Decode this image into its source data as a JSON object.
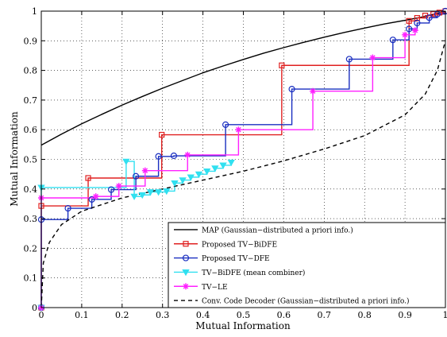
{
  "chart_data": {
    "type": "line",
    "title": "",
    "xlabel": "Mutual Information",
    "ylabel": "Mutual Information",
    "xlim": [
      0,
      1
    ],
    "ylim": [
      0,
      1
    ],
    "xticks": [
      "0",
      "0.1",
      "0.2",
      "0.3",
      "0.4",
      "0.5",
      "0.6",
      "0.7",
      "0.8",
      "0.9",
      "1"
    ],
    "yticks": [
      "0",
      "0.1",
      "0.2",
      "0.3",
      "0.4",
      "0.5",
      "0.6",
      "0.7",
      "0.8",
      "0.9",
      "1"
    ],
    "grid": true,
    "legend_position": "bottom-right",
    "series": [
      {
        "name": "MAP (Gaussian−distributed a priori info.)",
        "color": "#000000",
        "dash": "solid",
        "marker": "none",
        "step": false,
        "x": [
          0,
          0.05,
          0.1,
          0.15,
          0.2,
          0.25,
          0.3,
          0.35,
          0.4,
          0.45,
          0.5,
          0.55,
          0.6,
          0.65,
          0.7,
          0.75,
          0.8,
          0.85,
          0.9,
          0.95,
          1.0
        ],
        "y": [
          0.548,
          0.585,
          0.62,
          0.652,
          0.683,
          0.712,
          0.74,
          0.766,
          0.792,
          0.815,
          0.837,
          0.858,
          0.877,
          0.895,
          0.912,
          0.928,
          0.943,
          0.957,
          0.969,
          0.982,
          1.0
        ]
      },
      {
        "name": "Proposed TV−BiDFE",
        "color": "#e02020",
        "dash": "solid",
        "marker": "square",
        "step": true,
        "x": [
          0.0,
          0.0,
          0.116,
          0.298,
          0.595,
          0.91,
          0.93,
          0.95,
          0.97,
          0.985,
          1.0
        ],
        "y": [
          0.0,
          0.343,
          0.437,
          0.583,
          0.817,
          0.967,
          0.977,
          0.985,
          0.99,
          0.995,
          1.0
        ]
      },
      {
        "name": "Proposed TV−DFE",
        "color": "#1a2fc0",
        "dash": "solid",
        "marker": "circle",
        "step": true,
        "x": [
          0.0,
          0.0,
          0.066,
          0.125,
          0.173,
          0.234,
          0.29,
          0.328,
          0.456,
          0.62,
          0.762,
          0.87,
          0.91,
          0.93,
          0.96,
          0.98,
          1.0
        ],
        "y": [
          0.0,
          0.297,
          0.335,
          0.365,
          0.398,
          0.443,
          0.51,
          0.512,
          0.617,
          0.737,
          0.838,
          0.903,
          0.94,
          0.96,
          0.978,
          0.99,
          1.0
        ]
      },
      {
        "name": "TV−BiDFE (mean combiner)",
        "color": "#30e0f0",
        "dash": "solid",
        "marker": "triangle-down",
        "step": true,
        "x": [
          0.0,
          0.0,
          0.21,
          0.23,
          0.25,
          0.27,
          0.29,
          0.31,
          0.33,
          0.35,
          0.37,
          0.39,
          0.41,
          0.43,
          0.45,
          0.47
        ],
        "y": [
          0.0,
          0.405,
          0.493,
          0.375,
          0.38,
          0.39,
          0.39,
          0.393,
          0.42,
          0.43,
          0.44,
          0.45,
          0.46,
          0.47,
          0.48,
          0.49
        ]
      },
      {
        "name": "TV−LE",
        "color": "#ff20ff",
        "dash": "solid",
        "marker": "star",
        "step": true,
        "x": [
          0.0,
          0.0,
          0.135,
          0.192,
          0.257,
          0.362,
          0.488,
          0.672,
          0.82,
          0.9,
          0.925
        ],
        "y": [
          0.0,
          0.37,
          0.375,
          0.41,
          0.462,
          0.515,
          0.6,
          0.73,
          0.843,
          0.92,
          0.935
        ]
      },
      {
        "name": "Conv. Code Decoder (Gaussian−distributed a priori info.)",
        "color": "#000000",
        "dash": "dashed",
        "marker": "none",
        "step": false,
        "x": [
          0.0,
          0.005,
          0.02,
          0.05,
          0.1,
          0.2,
          0.3,
          0.4,
          0.5,
          0.6,
          0.7,
          0.8,
          0.9,
          0.95,
          0.98,
          1.0
        ],
        "y": [
          0.0,
          0.15,
          0.22,
          0.28,
          0.325,
          0.37,
          0.4,
          0.43,
          0.46,
          0.495,
          0.535,
          0.58,
          0.65,
          0.72,
          0.8,
          0.9
        ]
      }
    ]
  }
}
